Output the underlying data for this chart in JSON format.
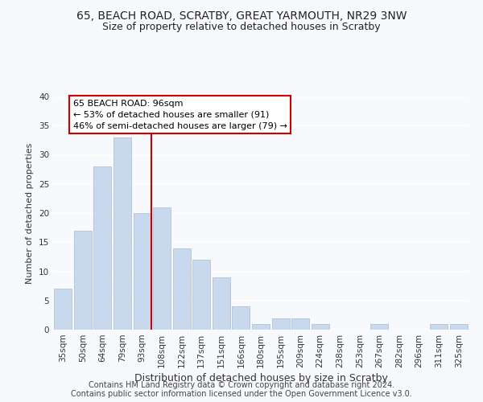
{
  "title": "65, BEACH ROAD, SCRATBY, GREAT YARMOUTH, NR29 3NW",
  "subtitle": "Size of property relative to detached houses in Scratby",
  "xlabel": "Distribution of detached houses by size in Scratby",
  "ylabel": "Number of detached properties",
  "bar_labels": [
    "35sqm",
    "50sqm",
    "64sqm",
    "79sqm",
    "93sqm",
    "108sqm",
    "122sqm",
    "137sqm",
    "151sqm",
    "166sqm",
    "180sqm",
    "195sqm",
    "209sqm",
    "224sqm",
    "238sqm",
    "253sqm",
    "267sqm",
    "282sqm",
    "296sqm",
    "311sqm",
    "325sqm"
  ],
  "bar_values": [
    7,
    17,
    28,
    33,
    20,
    21,
    14,
    12,
    9,
    4,
    1,
    2,
    2,
    1,
    0,
    0,
    1,
    0,
    0,
    1,
    1
  ],
  "bar_color": "#c9d9ed",
  "vline_index": 4,
  "vline_color": "#cc0000",
  "ylim": [
    0,
    40
  ],
  "yticks": [
    0,
    5,
    10,
    15,
    20,
    25,
    30,
    35,
    40
  ],
  "annotation_title": "65 BEACH ROAD: 96sqm",
  "annotation_line1": "← 53% of detached houses are smaller (91)",
  "annotation_line2": "46% of semi-detached houses are larger (79) →",
  "annotation_box_facecolor": "#ffffff",
  "annotation_box_edgecolor": "#cc0000",
  "footer1": "Contains HM Land Registry data © Crown copyright and database right 2024.",
  "footer2": "Contains public sector information licensed under the Open Government Licence v3.0.",
  "bg_color": "#f7f9fc",
  "plot_bg_color": "#f7f9fc",
  "grid_color": "#ffffff",
  "title_fontsize": 10,
  "subtitle_fontsize": 9,
  "xlabel_fontsize": 9,
  "ylabel_fontsize": 8,
  "tick_fontsize": 7.5,
  "annotation_fontsize": 8,
  "footer_fontsize": 7
}
